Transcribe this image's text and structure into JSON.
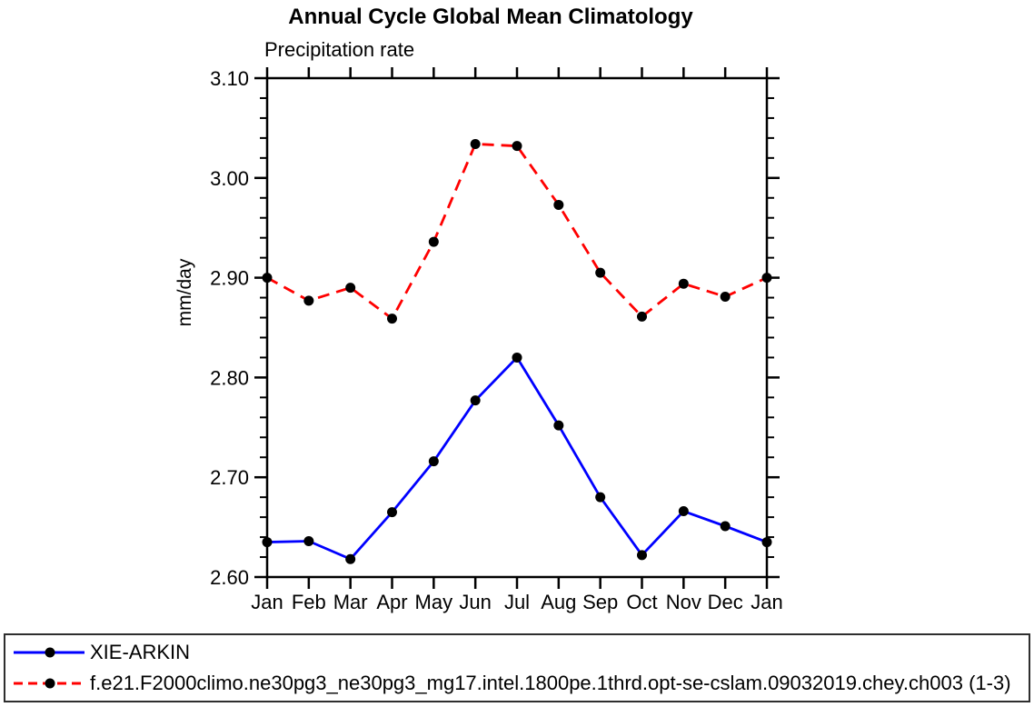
{
  "page": {
    "background": "#ffffff",
    "axis_color": "#000000"
  },
  "chart_data": {
    "type": "line",
    "title": "Annual Cycle Global Mean Climatology",
    "subtitle": "Precipitation rate",
    "ylabel": "mm/day",
    "xlabel": "",
    "categories": [
      "Jan",
      "Feb",
      "Mar",
      "Apr",
      "May",
      "Jun",
      "Jul",
      "Aug",
      "Sep",
      "Oct",
      "Nov",
      "Dec",
      "Jan"
    ],
    "ylim": [
      2.6,
      3.1
    ],
    "ytick_major_step": 0.1,
    "ytick_minor_step": 0.02,
    "ytick_labels": [
      "2.60",
      "2.70",
      "2.80",
      "2.90",
      "3.00",
      "3.10"
    ],
    "grid": false,
    "legend_position": "bottom",
    "series": [
      {
        "name": "XIE-ARKIN",
        "color": "#0000ff",
        "line_style": "solid",
        "marker": "filled-circle",
        "marker_color": "#000000",
        "values": [
          2.635,
          2.636,
          2.618,
          2.665,
          2.716,
          2.777,
          2.82,
          2.752,
          2.68,
          2.622,
          2.666,
          2.651,
          2.635
        ]
      },
      {
        "name": "f.e21.F2000climo.ne30pg3_ne30pg3_mg17.intel.1800pe.1thrd.opt-se-cslam.09032019.chey.ch003 (1-3)",
        "color": "#ff0000",
        "line_style": "dashed",
        "marker": "filled-circle",
        "marker_color": "#000000",
        "values": [
          2.9,
          2.877,
          2.89,
          2.859,
          2.936,
          3.034,
          3.032,
          2.973,
          2.905,
          2.861,
          2.894,
          2.881,
          2.9
        ]
      }
    ]
  }
}
